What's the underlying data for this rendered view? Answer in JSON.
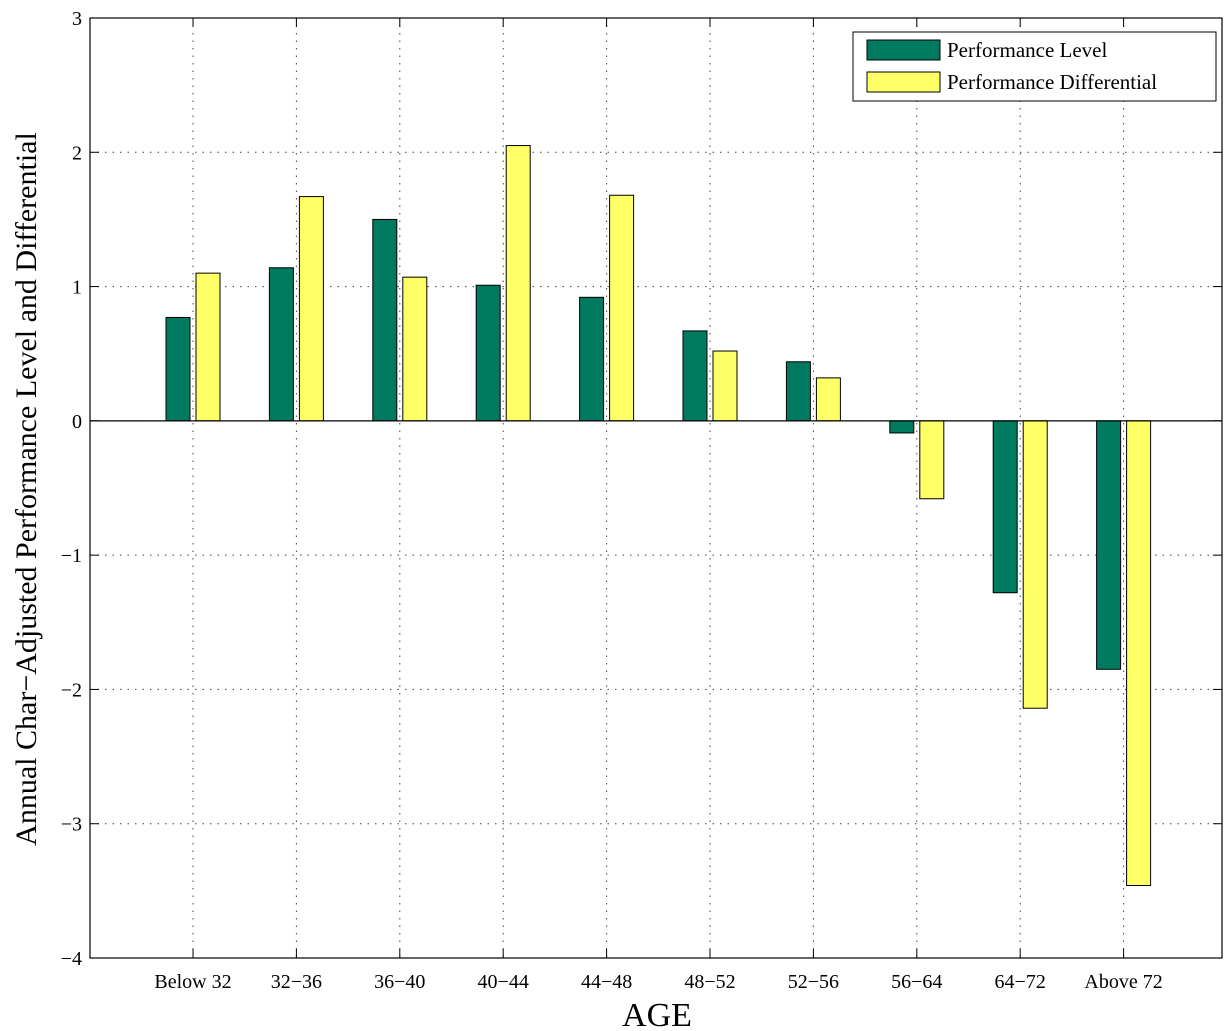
{
  "chart_data": {
    "type": "bar",
    "title": "",
    "xlabel": "AGE",
    "ylabel": "Annual Char−Adjusted Performance Level and Differential",
    "categories": [
      "Below 32",
      "32−36",
      "36−40",
      "40−44",
      "44−48",
      "48−52",
      "52−56",
      "56−64",
      "64−72",
      "Above 72"
    ],
    "series": [
      {
        "name": "Performance Level",
        "color": "#007A5E",
        "values": [
          0.77,
          1.14,
          1.5,
          1.01,
          0.92,
          0.67,
          0.44,
          -0.09,
          -1.28,
          -1.85
        ]
      },
      {
        "name": "Performance Differential",
        "color": "#FFFF66",
        "values": [
          1.1,
          1.67,
          1.07,
          2.05,
          1.68,
          0.52,
          0.32,
          -0.58,
          -2.14,
          -3.46
        ]
      }
    ],
    "ylim": [
      -4,
      3
    ],
    "yticks": [
      "−4",
      "−3",
      "−2",
      "−1",
      "0",
      "1",
      "2",
      "3"
    ],
    "grid": true,
    "legend_position": "top-right"
  }
}
